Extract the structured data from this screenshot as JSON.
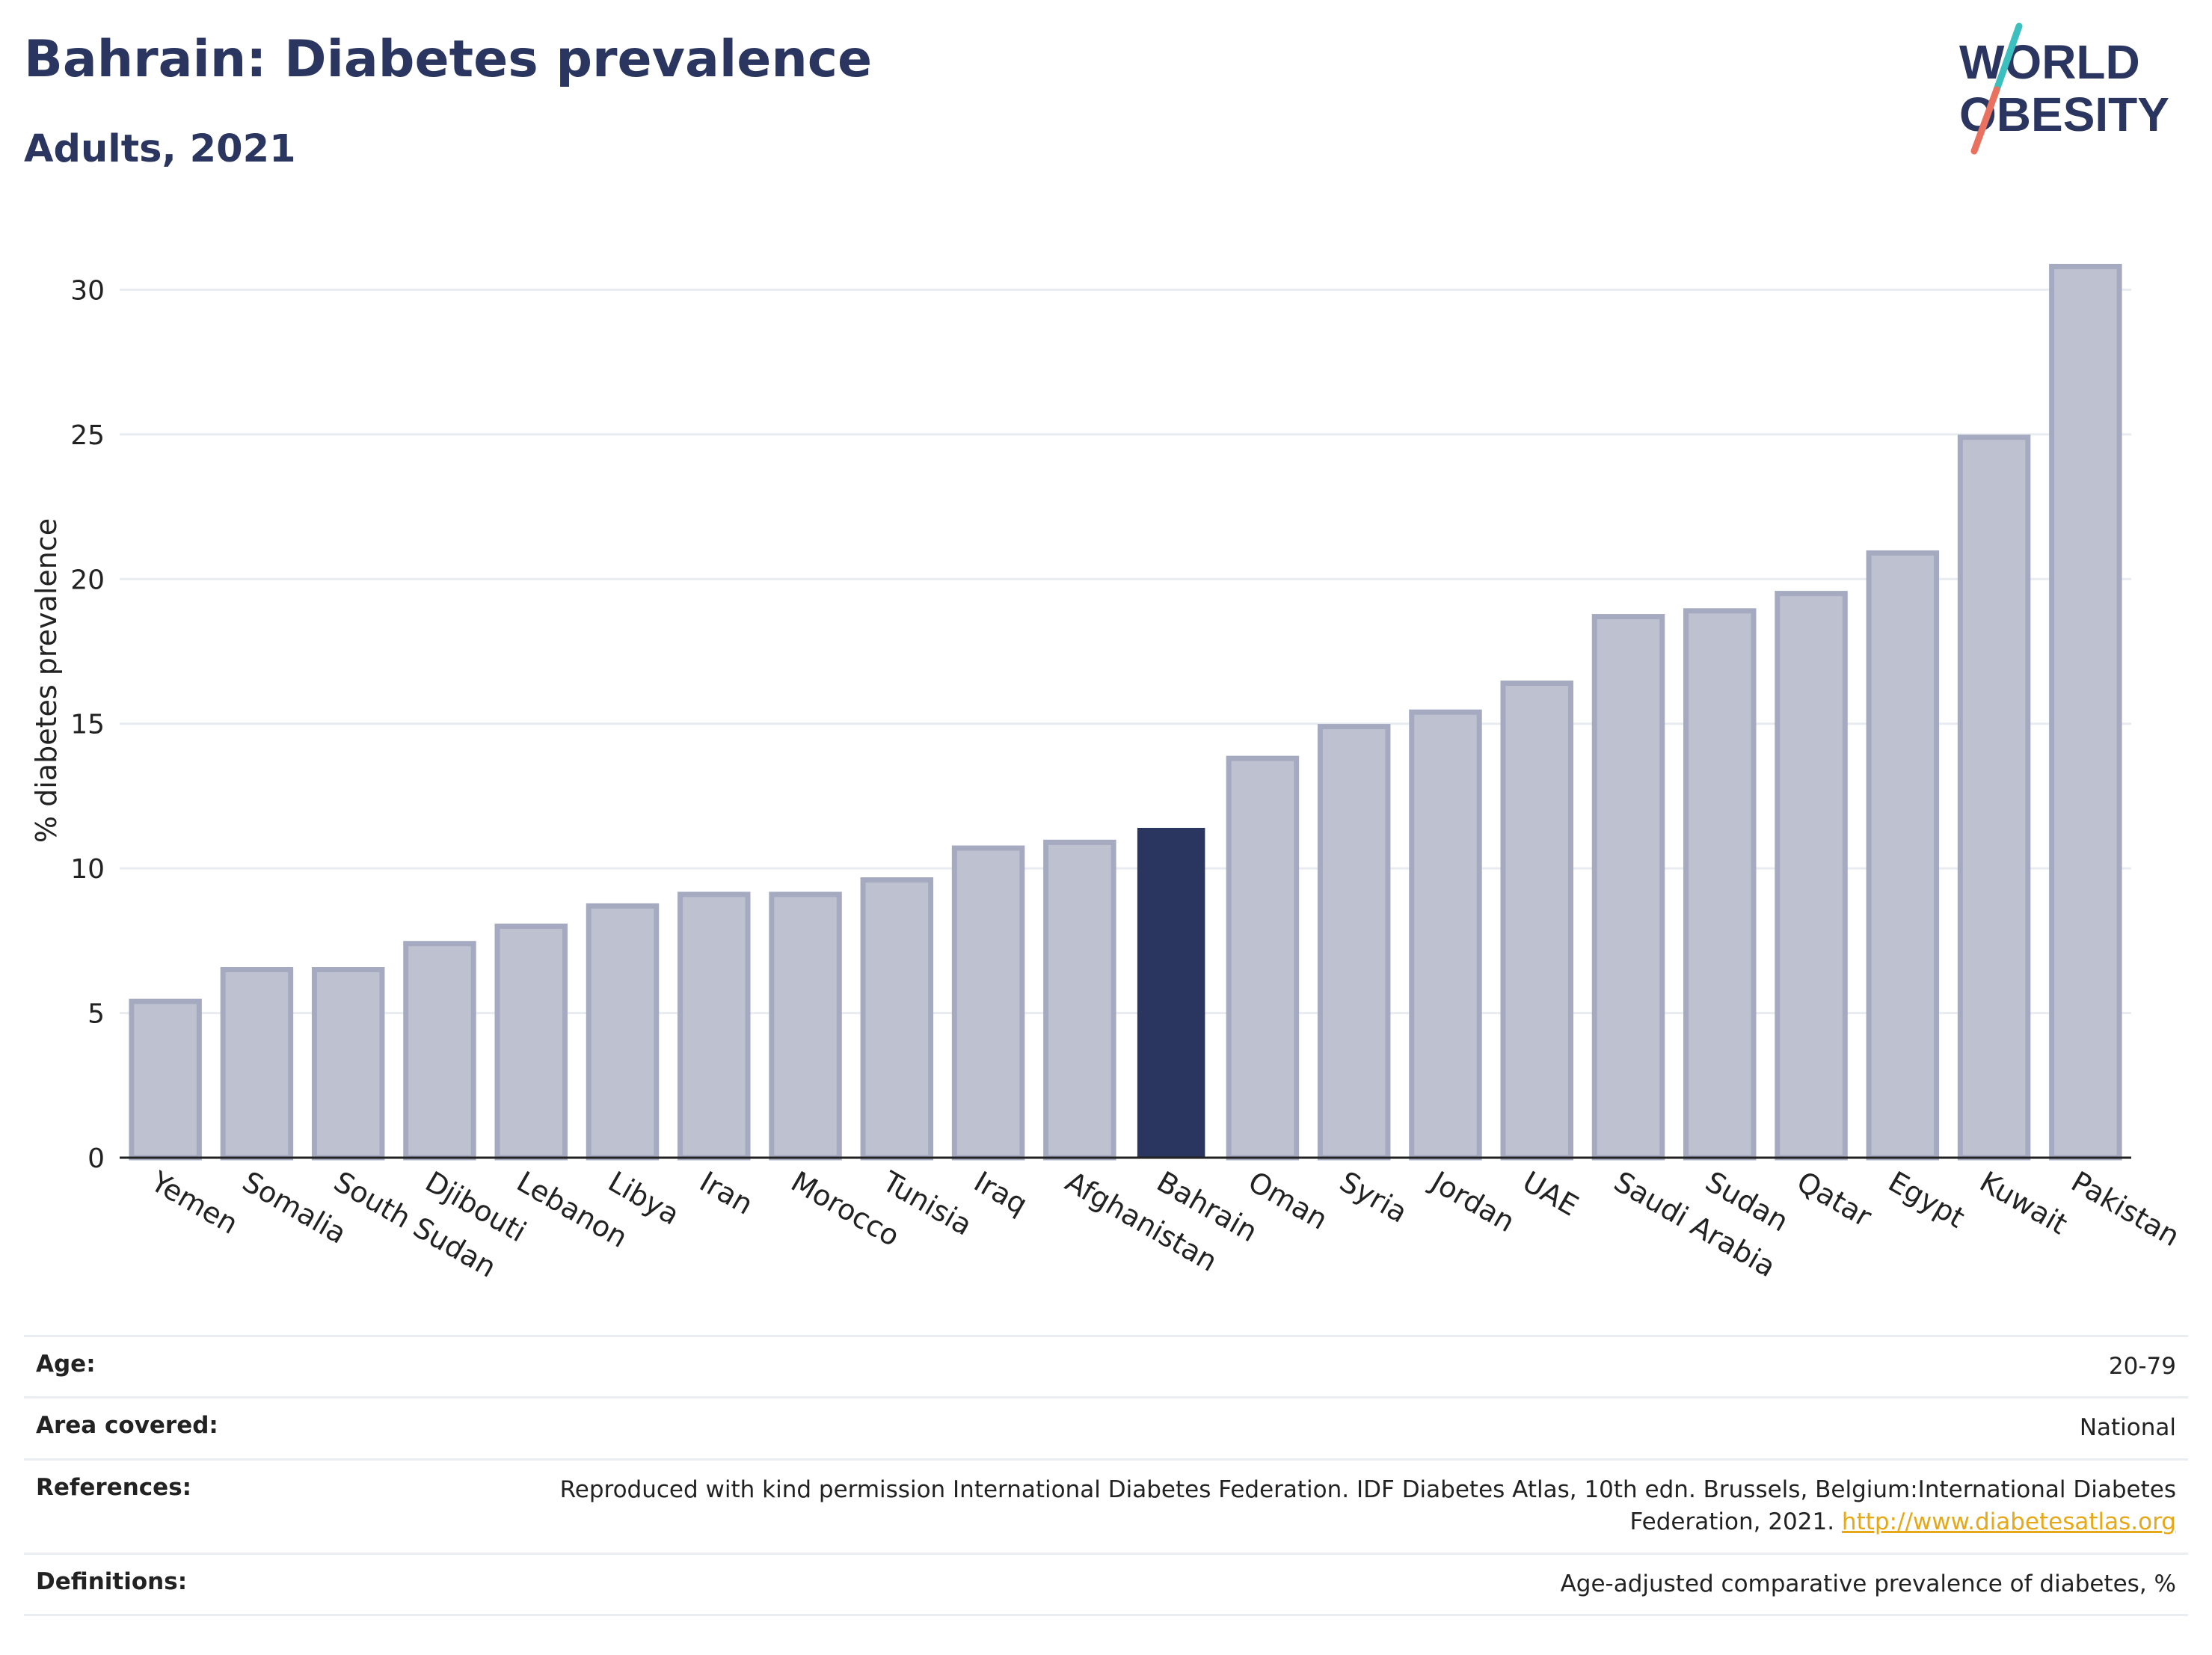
{
  "header": {
    "title": "Bahrain: Diabetes prevalence",
    "subtitle": "Adults, 2021"
  },
  "logo": {
    "line1": "WORLD",
    "line2": "OBESITY",
    "colors": {
      "text": "#2a365f",
      "slash_top": "#3bbfbf",
      "slash_bottom": "#e8715f"
    }
  },
  "chart_data": {
    "type": "bar",
    "ylabel": "% diabetes prevalence",
    "ylim": [
      0,
      32
    ],
    "yticks": [
      0,
      5,
      10,
      15,
      20,
      25,
      30
    ],
    "grid": true,
    "highlight": "Bahrain",
    "colors": {
      "bar": "#bec1cf",
      "bar_border": "#a6aac0",
      "highlight": "#2a365f",
      "grid": "#e8ebf0",
      "axis": "#222222"
    },
    "categories": [
      "Yemen",
      "Somalia",
      "South Sudan",
      "Djibouti",
      "Lebanon",
      "Libya",
      "Iran",
      "Morocco",
      "Tunisia",
      "Iraq",
      "Afghanistan",
      "Bahrain",
      "Oman",
      "Syria",
      "Jordan",
      "UAE",
      "Saudi Arabia",
      "Sudan",
      "Qatar",
      "Egypt",
      "Kuwait",
      "Pakistan"
    ],
    "values": [
      5.4,
      6.5,
      6.5,
      7.4,
      8.0,
      8.7,
      9.1,
      9.1,
      9.6,
      10.7,
      10.9,
      11.4,
      13.8,
      14.9,
      15.4,
      16.4,
      18.7,
      18.9,
      19.5,
      20.9,
      24.9,
      30.8
    ]
  },
  "info": {
    "age": {
      "label": "Age:",
      "value": "20-79"
    },
    "area": {
      "label": "Area covered:",
      "value": "National"
    },
    "references": {
      "label": "References:",
      "text": "Reproduced with kind permission International Diabetes Federation.  IDF Diabetes Atlas, 10th edn. Brussels, Belgium:International Diabetes Federation, 2021. ",
      "link": "http://www.diabetesatlas.org"
    },
    "definitions": {
      "label": "Definitions:",
      "value": "Age-adjusted comparative prevalence of diabetes, %"
    }
  }
}
